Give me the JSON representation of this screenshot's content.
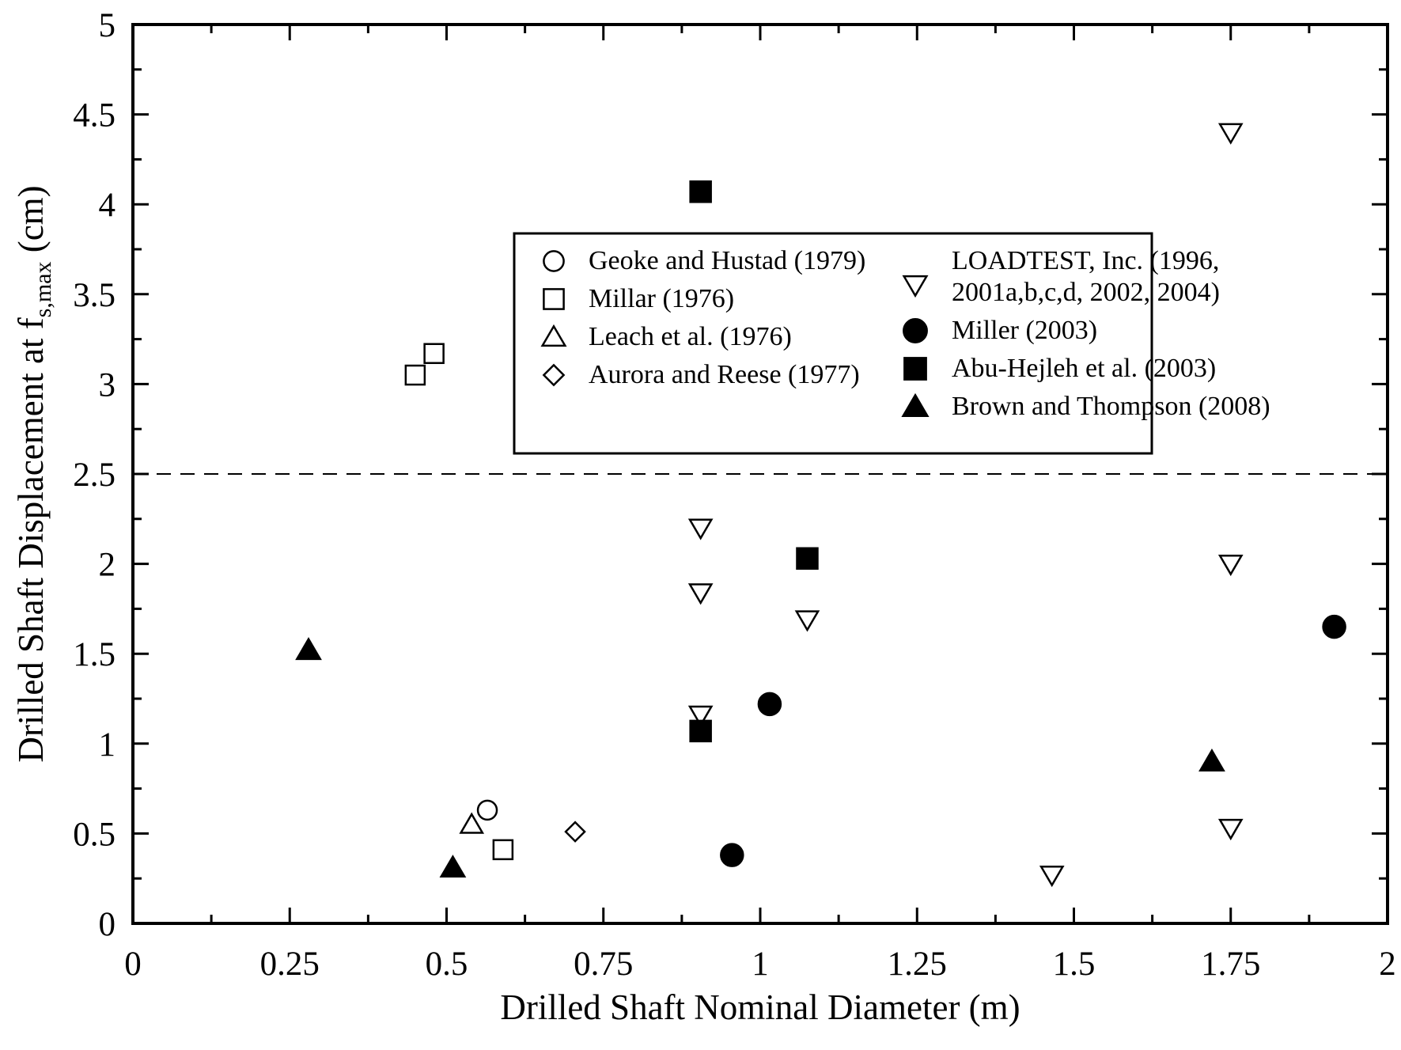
{
  "chart_data": {
    "type": "scatter",
    "title": "",
    "xlabel": "Drilled Shaft Nominal Diameter (m)",
    "ylabel": {
      "main": "Drilled Shaft Displacement at f",
      "subscript": "s,max",
      "suffix": " (cm)"
    },
    "xlim": [
      0,
      2
    ],
    "ylim": [
      0,
      5
    ],
    "x_ticks": [
      "0",
      "0.25",
      "0.5",
      "0.75",
      "1",
      "1.25",
      "1.5",
      "1.75",
      "2"
    ],
    "y_ticks": [
      "0",
      "0.5",
      "1",
      "1.5",
      "2",
      "2.5",
      "3",
      "3.5",
      "4",
      "4.5",
      "5"
    ],
    "grid": false,
    "legend_position": "upper-right",
    "reference_line": {
      "y": 2.5,
      "style": "dashed"
    },
    "series": [
      {
        "name": "Geoke and Hustad (1979)",
        "marker": "open-circle",
        "points": [
          [
            0.565,
            0.63
          ]
        ]
      },
      {
        "name": "Millar (1976)",
        "marker": "open-square",
        "points": [
          [
            0.45,
            3.05
          ],
          [
            0.48,
            3.17
          ],
          [
            0.59,
            0.41
          ]
        ]
      },
      {
        "name": "Leach et al. (1976)",
        "marker": "open-triangle-up",
        "points": [
          [
            0.54,
            0.55
          ]
        ]
      },
      {
        "name": "Aurora and Reese (1977)",
        "marker": "open-diamond",
        "points": [
          [
            0.705,
            0.51
          ]
        ]
      },
      {
        "name": [
          "LOADTEST, Inc. (1996,",
          "2001a,b,c,d, 2002, 2004)"
        ],
        "marker": "open-triangle-down",
        "points": [
          [
            1.75,
            4.4
          ],
          [
            0.905,
            2.2
          ],
          [
            0.905,
            1.84
          ],
          [
            1.075,
            1.69
          ],
          [
            0.905,
            1.16
          ],
          [
            1.75,
            2.0
          ],
          [
            1.75,
            0.53
          ],
          [
            1.465,
            0.27
          ]
        ]
      },
      {
        "name": "Miller (2003)",
        "marker": "filled-circle",
        "points": [
          [
            1.015,
            1.22
          ],
          [
            0.955,
            0.38
          ],
          [
            1.915,
            1.65
          ]
        ]
      },
      {
        "name": "Abu-Hejleh et al. (2003)",
        "marker": "filled-square",
        "points": [
          [
            0.905,
            4.07
          ],
          [
            1.075,
            2.03
          ],
          [
            0.905,
            1.07
          ]
        ]
      },
      {
        "name": "Brown and Thompson (2008)",
        "marker": "filled-triangle-up",
        "points": [
          [
            0.28,
            1.52
          ],
          [
            0.51,
            0.31
          ],
          [
            1.72,
            0.9
          ]
        ]
      }
    ]
  }
}
